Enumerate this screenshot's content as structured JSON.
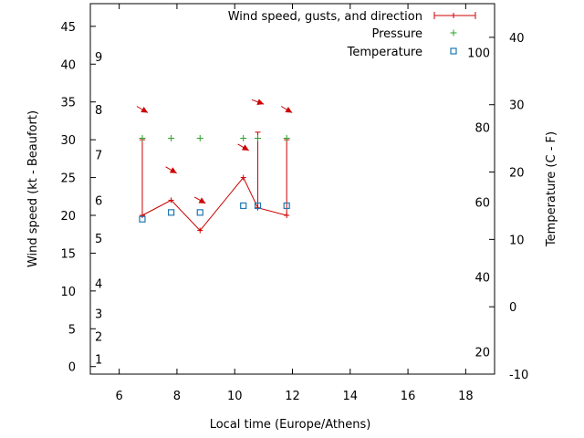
{
  "chart_data": {
    "type": "line",
    "xlabel": "Local time (Europe/Athens)",
    "ylabel": "Wind speed (kt - Beaufort)",
    "y2label": "Temperature (C - F)",
    "xlim": [
      5,
      19
    ],
    "ylim": [
      -1,
      48
    ],
    "y2lim": [
      -10,
      45
    ],
    "x_ticks": [
      "6",
      "8",
      "10",
      "12",
      "14",
      "16",
      "18"
    ],
    "y_ticks": [
      "0",
      "5",
      "10",
      "15",
      "20",
      "25",
      "30",
      "35",
      "40",
      "45"
    ],
    "y2_ticks": [
      "-10",
      "0",
      "10",
      "20",
      "30",
      "40"
    ],
    "beaufort_labels": [
      {
        "label": "1",
        "kt": 1
      },
      {
        "label": "2",
        "kt": 4
      },
      {
        "label": "3",
        "kt": 7
      },
      {
        "label": "4",
        "kt": 11
      },
      {
        "label": "5",
        "kt": 17
      },
      {
        "label": "6",
        "kt": 22
      },
      {
        "label": "7",
        "kt": 28
      },
      {
        "label": "8",
        "kt": 34
      },
      {
        "label": "9",
        "kt": 41
      }
    ],
    "fahrenheit_labels": [
      {
        "label": "20",
        "f": 20
      },
      {
        "label": "40",
        "f": 40
      },
      {
        "label": "60",
        "f": 60
      },
      {
        "label": "80",
        "f": 80
      },
      {
        "label": "100",
        "f": 100
      }
    ],
    "legend_position": "top-right",
    "series": [
      {
        "name": "Wind speed, gusts, and direction",
        "color": "#cc0000",
        "x": [
          6.8,
          7.8,
          8.8,
          10.3,
          10.8,
          11.8
        ],
        "y": [
          20,
          22,
          18,
          25,
          21,
          20
        ],
        "gusts": [
          {
            "x": 6.8,
            "y": 30
          },
          {
            "x": 10.8,
            "y": 31
          },
          {
            "x": 11.8,
            "y": 30
          }
        ],
        "direction_arrows": [
          {
            "x": 6.8,
            "y": 34,
            "angle_deg": 30
          },
          {
            "x": 7.8,
            "y": 26,
            "angle_deg": 30
          },
          {
            "x": 8.8,
            "y": 22,
            "angle_deg": 30
          },
          {
            "x": 10.3,
            "y": 29,
            "angle_deg": 30
          },
          {
            "x": 10.8,
            "y": 35,
            "angle_deg": 20
          },
          {
            "x": 11.8,
            "y": 34,
            "angle_deg": 30
          }
        ]
      },
      {
        "name": "Pressure",
        "color": "#2ca02c",
        "x": [
          6.8,
          7.8,
          8.8,
          10.3,
          10.8,
          11.8
        ],
        "y": [
          30.2,
          30.2,
          30.2,
          30.2,
          30.2,
          30.2
        ]
      },
      {
        "name": "Temperature",
        "color": "#1f77b4",
        "x": [
          6.8,
          7.8,
          8.8,
          10.3,
          10.8,
          11.8
        ],
        "y2": [
          13,
          14,
          14,
          15,
          15,
          15
        ]
      }
    ]
  }
}
